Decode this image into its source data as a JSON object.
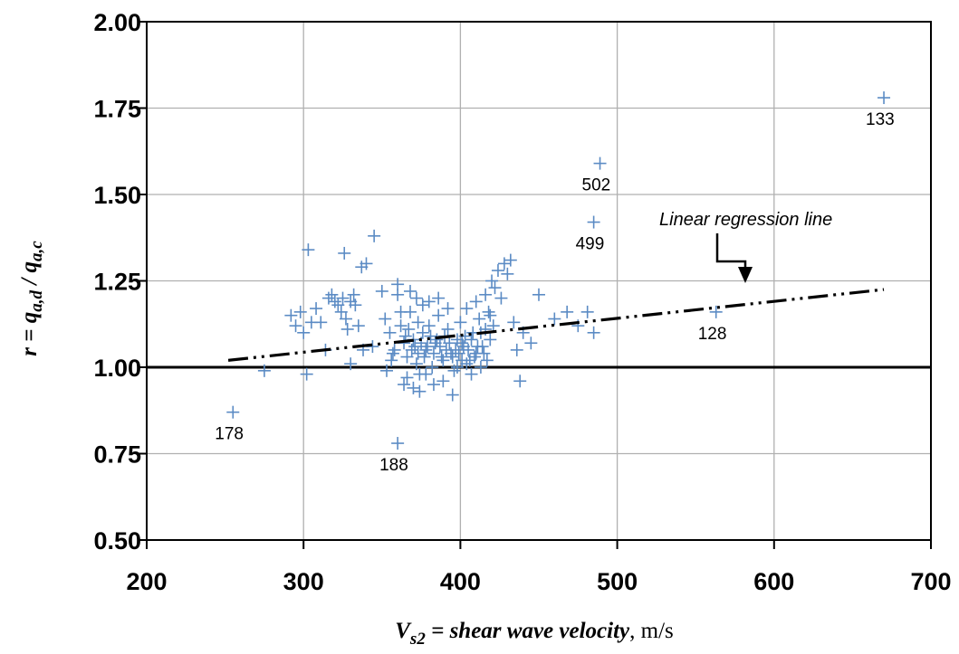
{
  "chart_data": {
    "type": "scatter",
    "title": "",
    "xlim": [
      200,
      700
    ],
    "ylim": [
      0.5,
      2.0
    ],
    "x_ticks": [
      "200",
      "300",
      "400",
      "500",
      "600",
      "700"
    ],
    "y_ticks": [
      "0.50",
      "0.75",
      "1.00",
      "1.25",
      "1.50",
      "1.75",
      "2.00"
    ],
    "grid": true,
    "xlabel": {
      "symbol": "V",
      "subscript": "s2",
      "text": " = shear wave velocity",
      "unit": ", m/s"
    },
    "ylabel": {
      "prefix": "r = q",
      "sub1": "a,d",
      "middle": " / q",
      "sub2": "a,c"
    },
    "reference_line": {
      "y": 1.0,
      "style": "solid"
    },
    "regression_line": {
      "label": "Linear regression line",
      "x": [
        252,
        670
      ],
      "y": [
        1.02,
        1.225
      ],
      "style": "dash-dot-dot"
    },
    "labeled_points": [
      {
        "x": 670,
        "y": 1.78,
        "label": "133"
      },
      {
        "x": 489,
        "y": 1.59,
        "label": "502"
      },
      {
        "x": 485,
        "y": 1.42,
        "label": "499"
      },
      {
        "x": 563,
        "y": 1.16,
        "label": "128"
      },
      {
        "x": 255,
        "y": 0.87,
        "label": "178"
      },
      {
        "x": 360,
        "y": 0.78,
        "label": "188"
      }
    ],
    "series": [
      {
        "marker": "+",
        "color": "#5b8bc4",
        "points": [
          [
            292,
            1.15
          ],
          [
            295,
            1.12
          ],
          [
            298,
            1.16
          ],
          [
            300,
            1.1
          ],
          [
            303,
            1.34
          ],
          [
            305,
            1.13
          ],
          [
            308,
            1.17
          ],
          [
            311,
            1.13
          ],
          [
            314,
            1.05
          ],
          [
            316,
            1.2
          ],
          [
            318,
            1.21
          ],
          [
            320,
            1.19
          ],
          [
            322,
            1.18
          ],
          [
            324,
            1.16
          ],
          [
            325,
            1.2
          ],
          [
            327,
            1.14
          ],
          [
            328,
            1.11
          ],
          [
            330,
            1.19
          ],
          [
            332,
            1.21
          ],
          [
            333,
            1.18
          ],
          [
            335,
            1.12
          ],
          [
            326,
            1.33
          ],
          [
            337,
            1.29
          ],
          [
            340,
            1.3
          ],
          [
            345,
            1.38
          ],
          [
            350,
            1.22
          ],
          [
            352,
            1.14
          ],
          [
            355,
            1.1
          ],
          [
            356,
            1.02
          ],
          [
            358,
            1.05
          ],
          [
            360,
            1.21
          ],
          [
            362,
            1.12
          ],
          [
            364,
            1.07
          ],
          [
            366,
            1.03
          ],
          [
            368,
            1.16
          ],
          [
            370,
            1.08
          ],
          [
            372,
            1.01
          ],
          [
            373,
            1.13
          ],
          [
            374,
            0.98
          ],
          [
            376,
            1.1
          ],
          [
            378,
            1.05
          ],
          [
            380,
            1.12
          ],
          [
            382,
            1.0
          ],
          [
            384,
            1.07
          ],
          [
            386,
            1.15
          ],
          [
            388,
            1.03
          ],
          [
            390,
            1.09
          ],
          [
            392,
            1.11
          ],
          [
            394,
            1.04
          ],
          [
            396,
            0.99
          ],
          [
            398,
            1.08
          ],
          [
            400,
            1.13
          ],
          [
            402,
            1.06
          ],
          [
            404,
            1.17
          ],
          [
            406,
            1.02
          ],
          [
            408,
            1.1
          ],
          [
            410,
            1.19
          ],
          [
            412,
            1.14
          ],
          [
            414,
            1.06
          ],
          [
            416,
            1.21
          ],
          [
            418,
            1.16
          ],
          [
            420,
            1.25
          ],
          [
            422,
            1.23
          ],
          [
            424,
            1.28
          ],
          [
            426,
            1.2
          ],
          [
            428,
            1.3
          ],
          [
            430,
            1.27
          ],
          [
            432,
            1.31
          ],
          [
            434,
            1.13
          ],
          [
            436,
            1.05
          ],
          [
            438,
            0.96
          ],
          [
            440,
            1.1
          ],
          [
            445,
            1.07
          ],
          [
            450,
            1.21
          ],
          [
            460,
            1.14
          ],
          [
            468,
            1.16
          ],
          [
            475,
            1.12
          ],
          [
            481,
            1.16
          ],
          [
            485,
            1.1
          ],
          [
            360,
            1.24
          ],
          [
            362,
            1.16
          ],
          [
            364,
            0.95
          ],
          [
            366,
            0.97
          ],
          [
            368,
            1.22
          ],
          [
            370,
            0.94
          ],
          [
            372,
            1.2
          ],
          [
            374,
            0.93
          ],
          [
            376,
            1.18
          ],
          [
            378,
            0.98
          ],
          [
            380,
            1.19
          ],
          [
            383,
            0.95
          ],
          [
            386,
            1.2
          ],
          [
            389,
            0.96
          ],
          [
            392,
            1.17
          ],
          [
            395,
            0.92
          ],
          [
            398,
            1.0
          ],
          [
            401,
            1.02
          ],
          [
            404,
            1.01
          ],
          [
            407,
            0.98
          ],
          [
            410,
            1.04
          ],
          [
            413,
            1.0
          ],
          [
            416,
            1.11
          ],
          [
            419,
            1.08
          ],
          [
            365,
            1.09
          ],
          [
            367,
            1.11
          ],
          [
            369,
            1.05
          ],
          [
            371,
            1.06
          ],
          [
            373,
            1.04
          ],
          [
            375,
            1.07
          ],
          [
            377,
            1.03
          ],
          [
            379,
            1.06
          ],
          [
            381,
            1.09
          ],
          [
            383,
            1.04
          ],
          [
            385,
            1.08
          ],
          [
            387,
            1.06
          ],
          [
            389,
            1.02
          ],
          [
            391,
            1.05
          ],
          [
            393,
            1.07
          ],
          [
            395,
            1.03
          ],
          [
            397,
            1.05
          ],
          [
            399,
            1.04
          ],
          [
            401,
            1.07
          ],
          [
            403,
            1.09
          ],
          [
            405,
            1.05
          ],
          [
            407,
            1.08
          ],
          [
            409,
            1.03
          ],
          [
            411,
            1.06
          ],
          [
            413,
            1.1
          ],
          [
            415,
            1.04
          ],
          [
            417,
            1.02
          ],
          [
            419,
            1.15
          ],
          [
            421,
            1.12
          ],
          [
            275,
            0.99
          ],
          [
            302,
            0.98
          ],
          [
            344,
            1.06
          ],
          [
            330,
            1.01
          ],
          [
            338,
            1.05
          ],
          [
            353,
            0.99
          ],
          [
            357,
            1.04
          ]
        ]
      }
    ]
  }
}
